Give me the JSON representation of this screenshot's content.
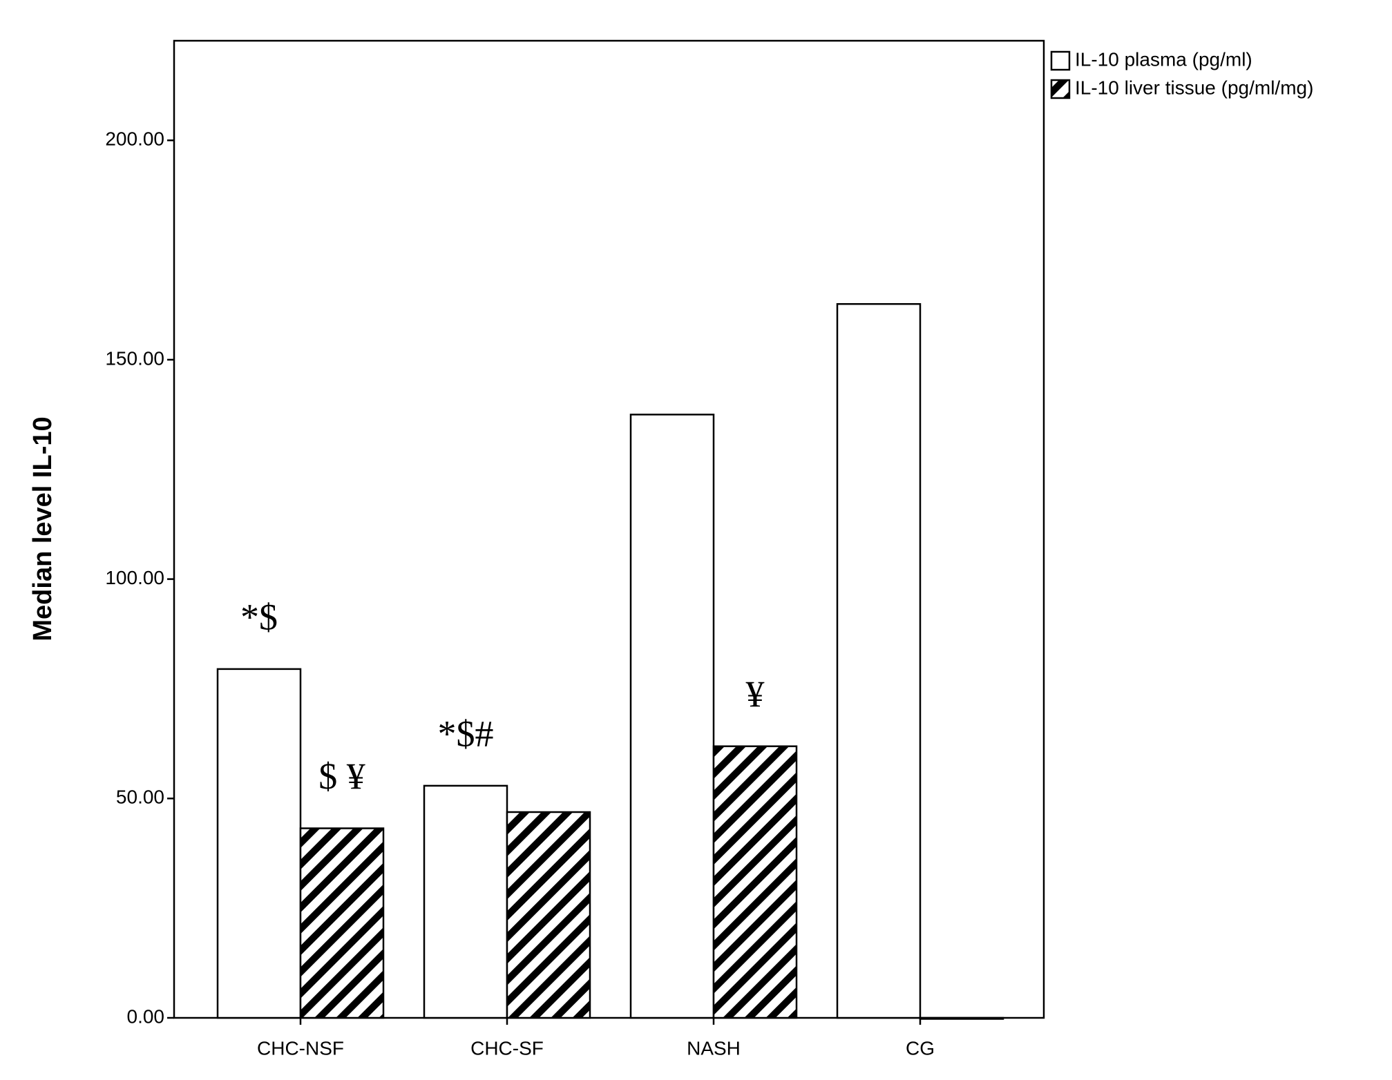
{
  "chart_data": {
    "type": "bar",
    "y_label": "Median level IL-10",
    "categories": [
      "CHC-NSF",
      "CHC-SF",
      "NASH",
      "CG"
    ],
    "series": [
      {
        "name": "IL-10 plasma (pg/ml)",
        "color": "#ffffff",
        "values": [
          79.5,
          52.9,
          137.5,
          162.7
        ]
      },
      {
        "name": "IL-10 liver tissue (pg/ml/mg)",
        "color": "#000000",
        "pattern": "hatch",
        "values": [
          43.2,
          46.9,
          61.9,
          0
        ]
      }
    ],
    "annotations": [
      {
        "text": "*$",
        "category": "CHC-NSF",
        "series": "IL-10 plasma (pg/ml)"
      },
      {
        "text": "$ ¥",
        "category": "CHC-NSF",
        "series": "IL-10 liver tissue (pg/ml/mg)"
      },
      {
        "text": "*$#",
        "category": "CHC-SF",
        "series": "IL-10 plasma (pg/ml)"
      },
      {
        "text": "¥",
        "category": "NASH",
        "series": "IL-10 liver tissue (pg/ml/mg)"
      }
    ],
    "ylim": [
      0,
      222.7
    ],
    "yticks": [
      {
        "value": 0,
        "label": "0.00"
      },
      {
        "value": 50,
        "label": "50.00"
      },
      {
        "value": 100,
        "label": "100.00"
      },
      {
        "value": 150,
        "label": "150.00"
      },
      {
        "value": 200,
        "label": "200.00"
      }
    ],
    "grid": false,
    "legend": "top-right-outside"
  }
}
